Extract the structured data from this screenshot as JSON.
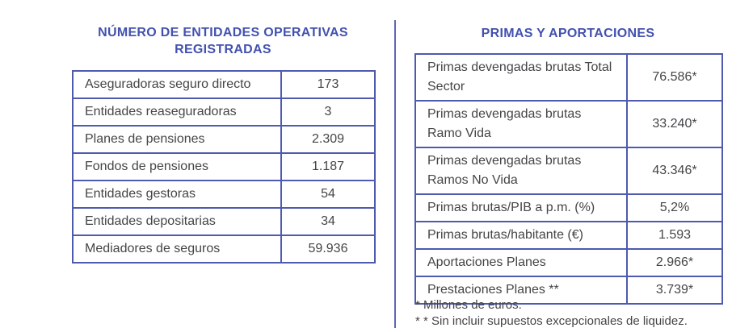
{
  "colors": {
    "title_blue": "#4251b0",
    "border_blue": "#4d5aae",
    "divider_blue": "#5c67b2",
    "text_gray": "#454548"
  },
  "left_panel": {
    "title_line1": "NÚMERO DE ENTIDADES OPERATIVAS",
    "title_line2": "REGISTRADAS",
    "table": {
      "rows": [
        {
          "label_lines": [
            "Aseguradoras seguro directo"
          ],
          "value": "173"
        },
        {
          "label_lines": [
            "Entidades reaseguradoras"
          ],
          "value": "3"
        },
        {
          "label_lines": [
            "Planes de pensiones"
          ],
          "value": "2.309"
        },
        {
          "label_lines": [
            "Fondos de pensiones"
          ],
          "value": "1.187"
        },
        {
          "label_lines": [
            "Entidades gestoras"
          ],
          "value": "54"
        },
        {
          "label_lines": [
            "Entidades depositarias"
          ],
          "value": "34"
        },
        {
          "label_lines": [
            "Mediadores de seguros"
          ],
          "value": "59.936"
        }
      ]
    }
  },
  "right_panel": {
    "title": "PRIMAS Y APORTACIONES",
    "table": {
      "rows": [
        {
          "label_lines": [
            "Primas devengadas brutas Total",
            "Sector"
          ],
          "value": "76.586*"
        },
        {
          "label_lines": [
            "Primas devengadas brutas",
            "Ramo Vida"
          ],
          "value": "33.240*"
        },
        {
          "label_lines": [
            "Primas devengadas brutas",
            "Ramos No Vida"
          ],
          "value": "43.346*"
        },
        {
          "label_lines": [
            "Primas brutas/PIB a p.m. (%)"
          ],
          "value": "5,2%"
        },
        {
          "label_lines": [
            "Primas brutas/habitante (€)"
          ],
          "value": "1.593"
        },
        {
          "label_lines": [
            "Aportaciones Planes"
          ],
          "value": "2.966*"
        },
        {
          "label_lines": [
            "Prestaciones Planes **"
          ],
          "value": "3.739*"
        }
      ]
    },
    "footnotes": [
      "* Millones de euros.",
      "* * Sin incluir supuestos excepcionales de liquidez."
    ]
  }
}
